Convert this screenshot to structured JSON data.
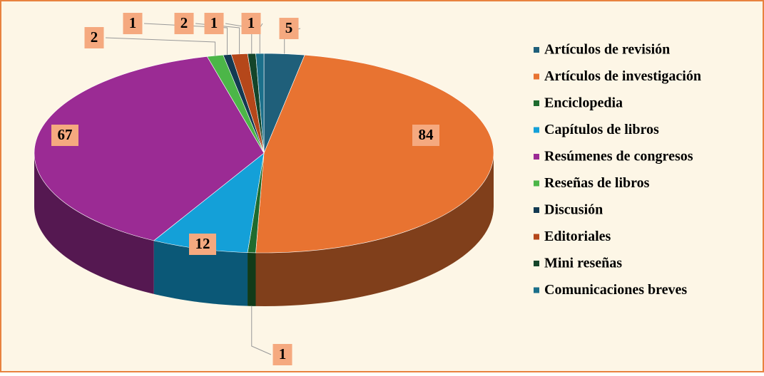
{
  "chart_data": {
    "type": "pie",
    "categories": [
      "Artículos de revisión",
      "Artículos de investigación",
      "Enciclopedia",
      "Capítulos de libros",
      "Resúmenes de congresos",
      "Reseñas de libros",
      "Discusión",
      "Editoriales",
      "Mini reseñas",
      "Comunicaciones breves"
    ],
    "values": [
      5,
      84,
      1,
      12,
      67,
      2,
      1,
      2,
      1,
      1
    ],
    "colors": [
      "#1f5f7a",
      "#e87331",
      "#1e6b2e",
      "#14a0d8",
      "#9b2b94",
      "#4cb648",
      "#133a52",
      "#b5471a",
      "#14452a",
      "#1b6f8a"
    ],
    "legend": "right"
  }
}
